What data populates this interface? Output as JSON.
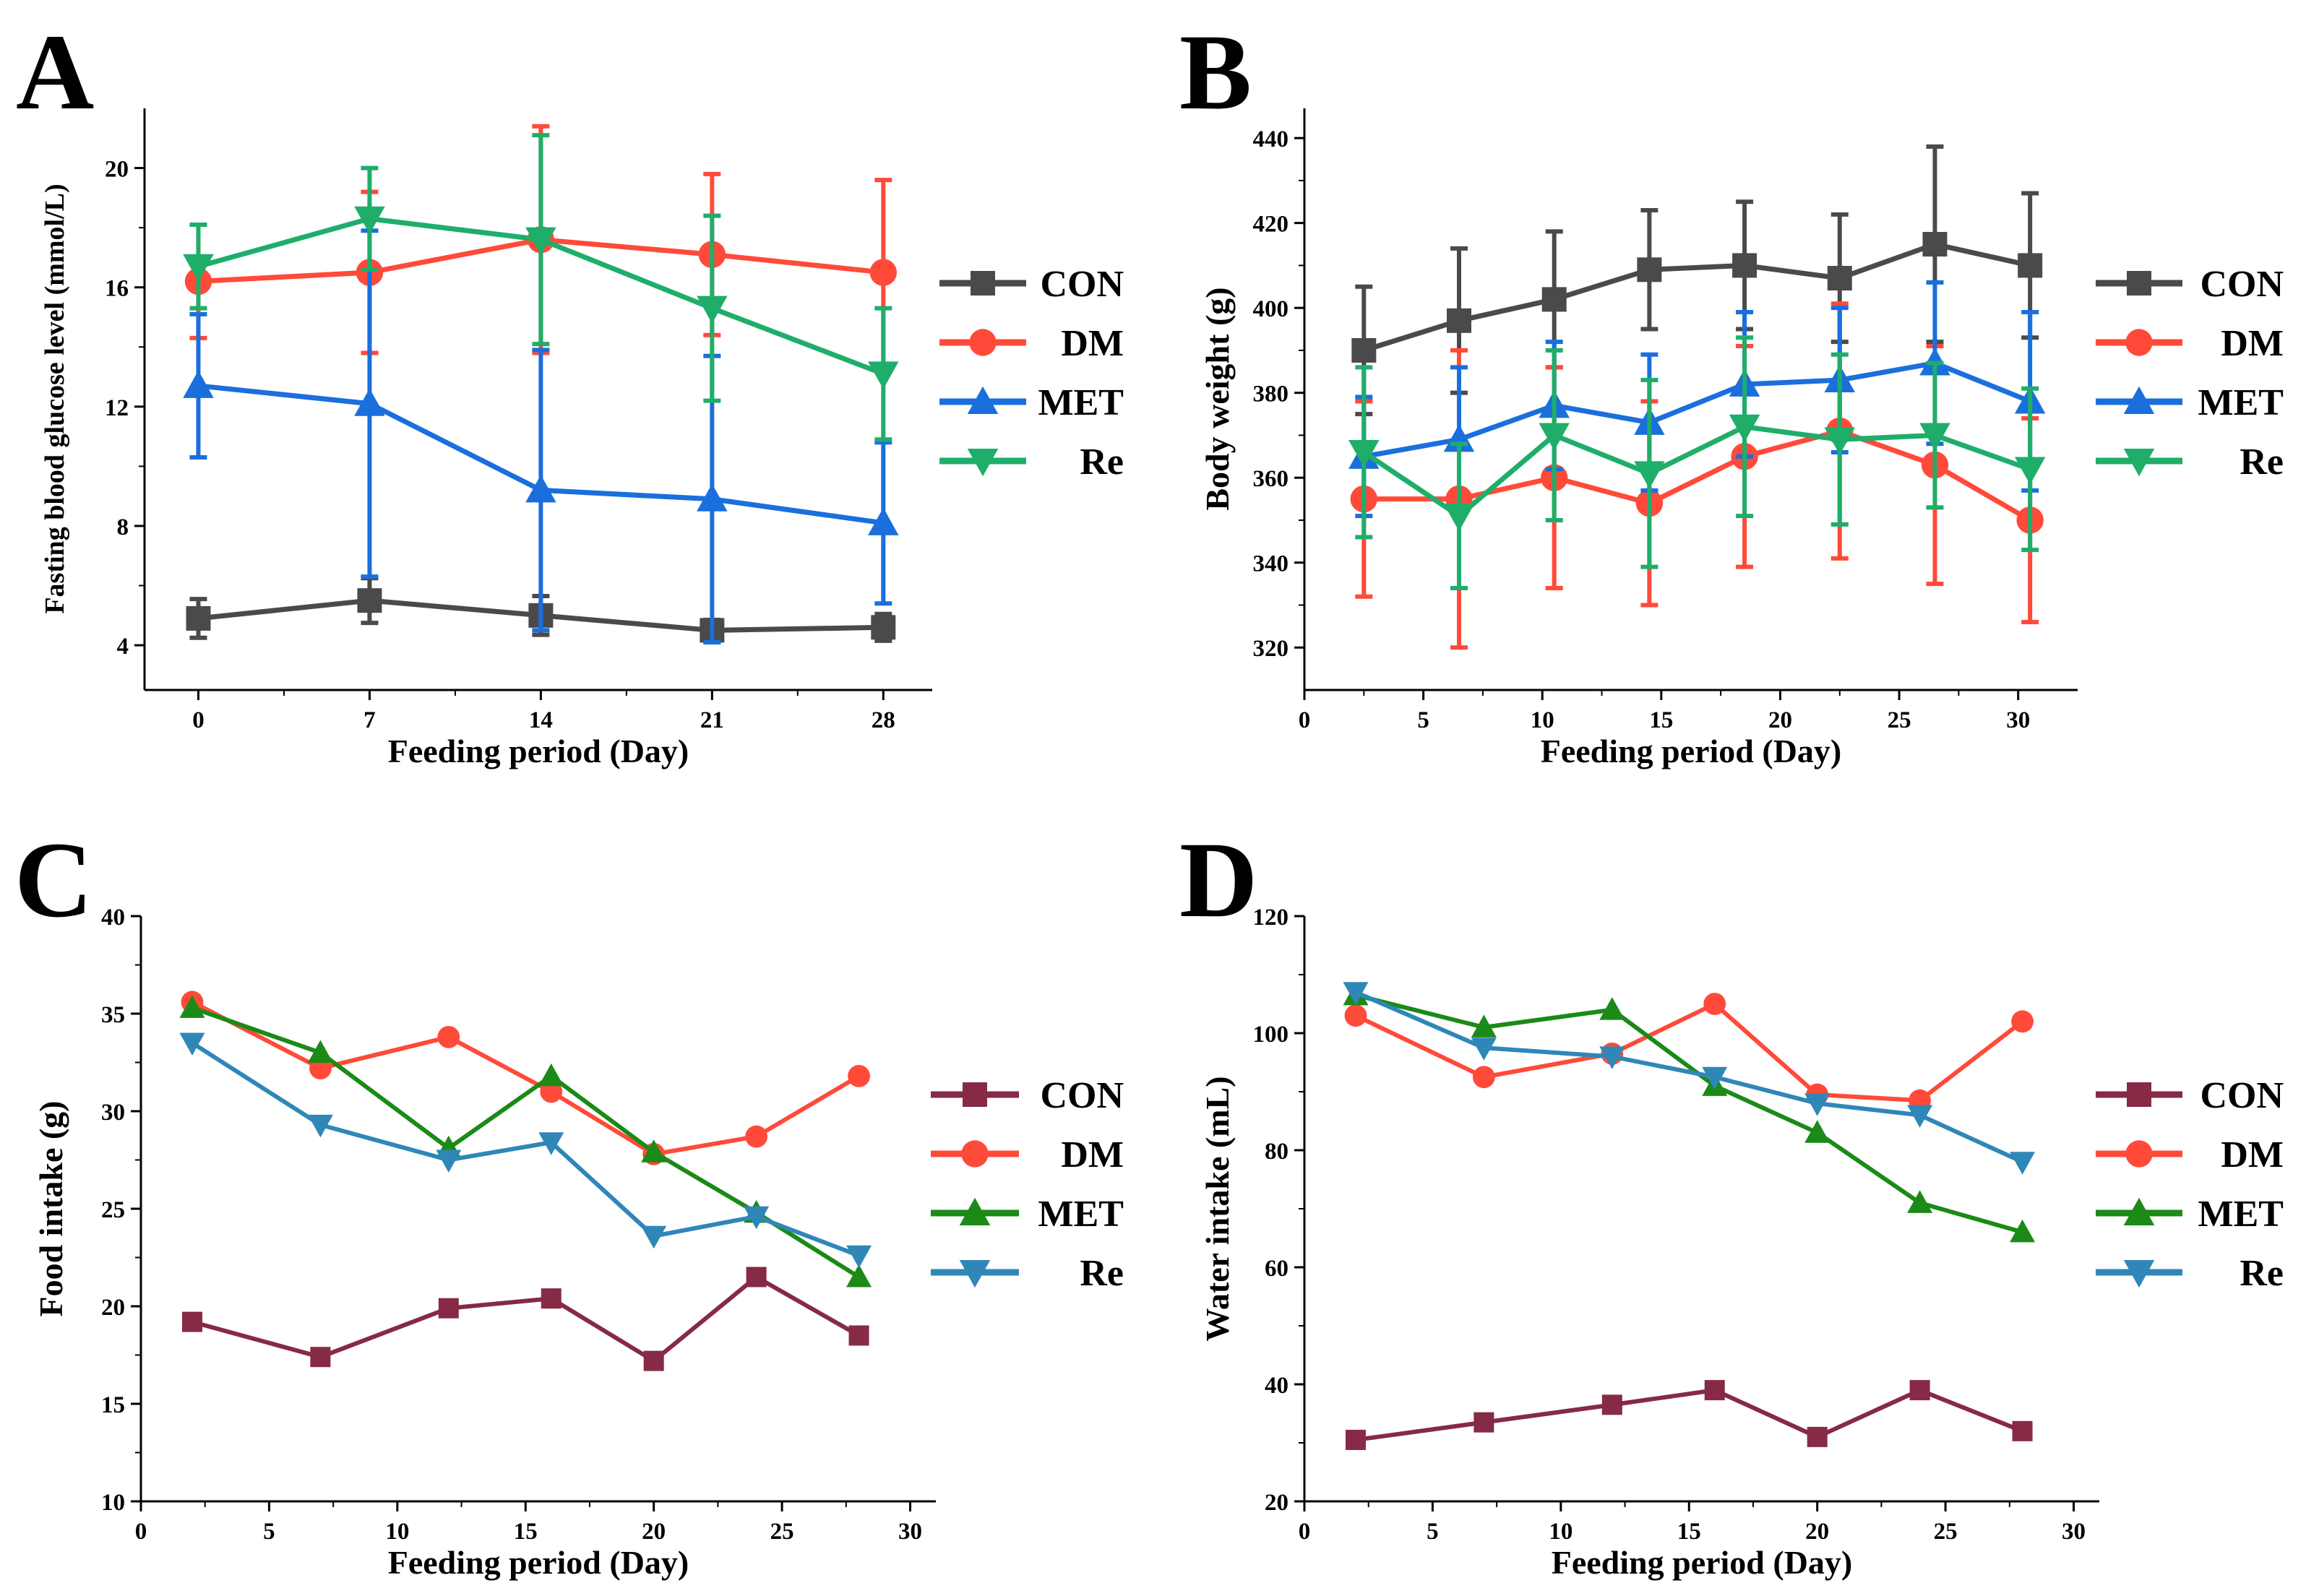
{
  "figure": {
    "colors": {
      "CON_ab": "#4a4a4a",
      "DM": "#ff4a3a",
      "MET_ab": "#1a6fdc",
      "Re_ab": "#1fae6a",
      "CON_cd": "#862a45",
      "MET_cd": "#1b8a16",
      "Re_cd": "#2f87b8"
    }
  },
  "chart_data": [
    {
      "id": "A",
      "label": "A",
      "type": "line",
      "xlabel": "Feeding period (Day)",
      "ylabel": "Fasting blood glucose level (mmol/L)",
      "categorical_x": true,
      "x": [
        0,
        7,
        14,
        21,
        28
      ],
      "xticks": [
        0,
        7,
        14,
        21,
        28
      ],
      "xlim": [
        -2.2,
        30
      ],
      "ylim": [
        2.5,
        22
      ],
      "yticks": [
        4,
        8,
        12,
        16,
        20
      ],
      "error_bars": true,
      "legend": [
        "CON",
        "DM",
        "MET",
        "Re"
      ],
      "series": [
        {
          "name": "CON",
          "marker": "square",
          "color_key": "CON_ab",
          "values": [
            4.9,
            5.5,
            5.0,
            4.5,
            4.6
          ],
          "err": [
            0.65,
            0.75,
            0.65,
            0.35,
            0.45
          ]
        },
        {
          "name": "DM",
          "marker": "circle",
          "color_key": "DM",
          "values": [
            16.2,
            16.5,
            17.6,
            17.1,
            16.5
          ],
          "err": [
            1.9,
            2.7,
            3.8,
            2.7,
            3.1
          ]
        },
        {
          "name": "MET",
          "marker": "triangle-up",
          "color_key": "MET_ab",
          "values": [
            12.7,
            12.1,
            9.2,
            8.9,
            8.1
          ],
          "err": [
            2.4,
            5.8,
            4.7,
            4.8,
            2.7
          ]
        },
        {
          "name": "Re",
          "marker": "triangle-down",
          "color_key": "Re_ab",
          "values": [
            16.7,
            18.3,
            17.6,
            15.3,
            13.1
          ],
          "err": [
            1.4,
            1.7,
            3.5,
            3.1,
            2.2
          ]
        }
      ]
    },
    {
      "id": "B",
      "label": "B",
      "type": "line",
      "xlabel": "Feeding period (Day)",
      "ylabel": "Body weight (g)",
      "categorical_x": false,
      "x": [
        2.5,
        6.5,
        10.5,
        14.5,
        18.5,
        22.5,
        26.5,
        30.5
      ],
      "xticks": [
        0,
        5,
        10,
        15,
        20,
        25,
        30
      ],
      "xlim": [
        0,
        32.5
      ],
      "ylim": [
        310,
        447
      ],
      "yticks": [
        320,
        340,
        360,
        380,
        400,
        420,
        440
      ],
      "error_bars": true,
      "legend": [
        "CON",
        "DM",
        "MET",
        "Re"
      ],
      "series": [
        {
          "name": "CON",
          "marker": "square",
          "color_key": "CON_ab",
          "values": [
            390,
            397,
            402,
            409,
            410,
            407,
            415,
            410
          ],
          "err": [
            15,
            17,
            16,
            14,
            15,
            15,
            23,
            17
          ]
        },
        {
          "name": "DM",
          "marker": "circle",
          "color_key": "DM",
          "values": [
            355,
            355,
            360,
            354,
            365,
            371,
            363,
            350
          ],
          "err": [
            23,
            35,
            26,
            24,
            26,
            30,
            28,
            24
          ]
        },
        {
          "name": "MET",
          "marker": "triangle-up",
          "color_key": "MET_ab",
          "values": [
            365,
            369,
            377,
            373,
            382,
            383,
            387,
            378
          ],
          "err": [
            14,
            17,
            15,
            16,
            17,
            17,
            19,
            21
          ]
        },
        {
          "name": "Re",
          "marker": "triangle-down",
          "color_key": "Re_ab",
          "values": [
            366,
            351,
            370,
            361,
            372,
            369,
            370,
            362
          ],
          "err": [
            20,
            17,
            20,
            22,
            21,
            20,
            17,
            19
          ]
        }
      ]
    },
    {
      "id": "C",
      "label": "C",
      "type": "line",
      "xlabel": "Feeding period (Day)",
      "ylabel": "Food intake (g)",
      "categorical_x": false,
      "x": [
        2,
        7,
        12,
        16,
        20,
        24,
        28
      ],
      "xticks": [
        0,
        5,
        10,
        15,
        20,
        25,
        30
      ],
      "xlim": [
        0,
        31
      ],
      "ylim": [
        10,
        40
      ],
      "yticks": [
        10,
        15,
        20,
        25,
        30,
        35,
        40
      ],
      "error_bars": false,
      "legend": [
        "CON",
        "DM",
        "MET",
        "Re"
      ],
      "series": [
        {
          "name": "CON",
          "marker": "square",
          "color_key": "CON_cd",
          "values": [
            19.2,
            17.4,
            19.9,
            20.4,
            17.2,
            21.5,
            18.5
          ]
        },
        {
          "name": "DM",
          "marker": "circle",
          "color_key": "DM",
          "values": [
            35.6,
            32.2,
            33.8,
            31.0,
            27.8,
            28.7,
            31.8
          ]
        },
        {
          "name": "MET",
          "marker": "triangle-up",
          "color_key": "MET_cd",
          "values": [
            35.3,
            33.0,
            28.1,
            31.8,
            27.9,
            24.8,
            21.5
          ]
        },
        {
          "name": "Re",
          "marker": "triangle-down",
          "color_key": "Re_cd",
          "values": [
            33.5,
            29.3,
            27.5,
            28.4,
            23.6,
            24.6,
            22.6
          ]
        }
      ]
    },
    {
      "id": "D",
      "label": "D",
      "type": "line",
      "xlabel": "Feeding period (Day)",
      "ylabel": "Water intake (mL)",
      "categorical_x": false,
      "x": [
        2,
        7,
        12,
        16,
        20,
        24,
        28
      ],
      "xticks": [
        0,
        5,
        10,
        15,
        20,
        25,
        30
      ],
      "xlim": [
        0,
        31
      ],
      "ylim": [
        20,
        120
      ],
      "yticks": [
        20,
        40,
        60,
        80,
        100,
        120
      ],
      "error_bars": false,
      "legend": [
        "CON",
        "DM",
        "MET",
        "Re"
      ],
      "series": [
        {
          "name": "CON",
          "marker": "square",
          "color_key": "CON_cd",
          "values": [
            30.5,
            33.5,
            36.5,
            39.0,
            31.0,
            39.0,
            32.0
          ]
        },
        {
          "name": "DM",
          "marker": "circle",
          "color_key": "DM",
          "values": [
            103.0,
            92.5,
            96.5,
            105.0,
            89.5,
            88.5,
            102.0
          ]
        },
        {
          "name": "MET",
          "marker": "triangle-up",
          "color_key": "MET_cd",
          "values": [
            106.5,
            101.0,
            104.0,
            91.0,
            83.0,
            71.0,
            66.0
          ]
        },
        {
          "name": "Re",
          "marker": "triangle-down",
          "color_key": "Re_cd",
          "values": [
            107.0,
            97.5,
            96.0,
            92.5,
            88.0,
            86.0,
            78.0
          ]
        }
      ]
    }
  ]
}
